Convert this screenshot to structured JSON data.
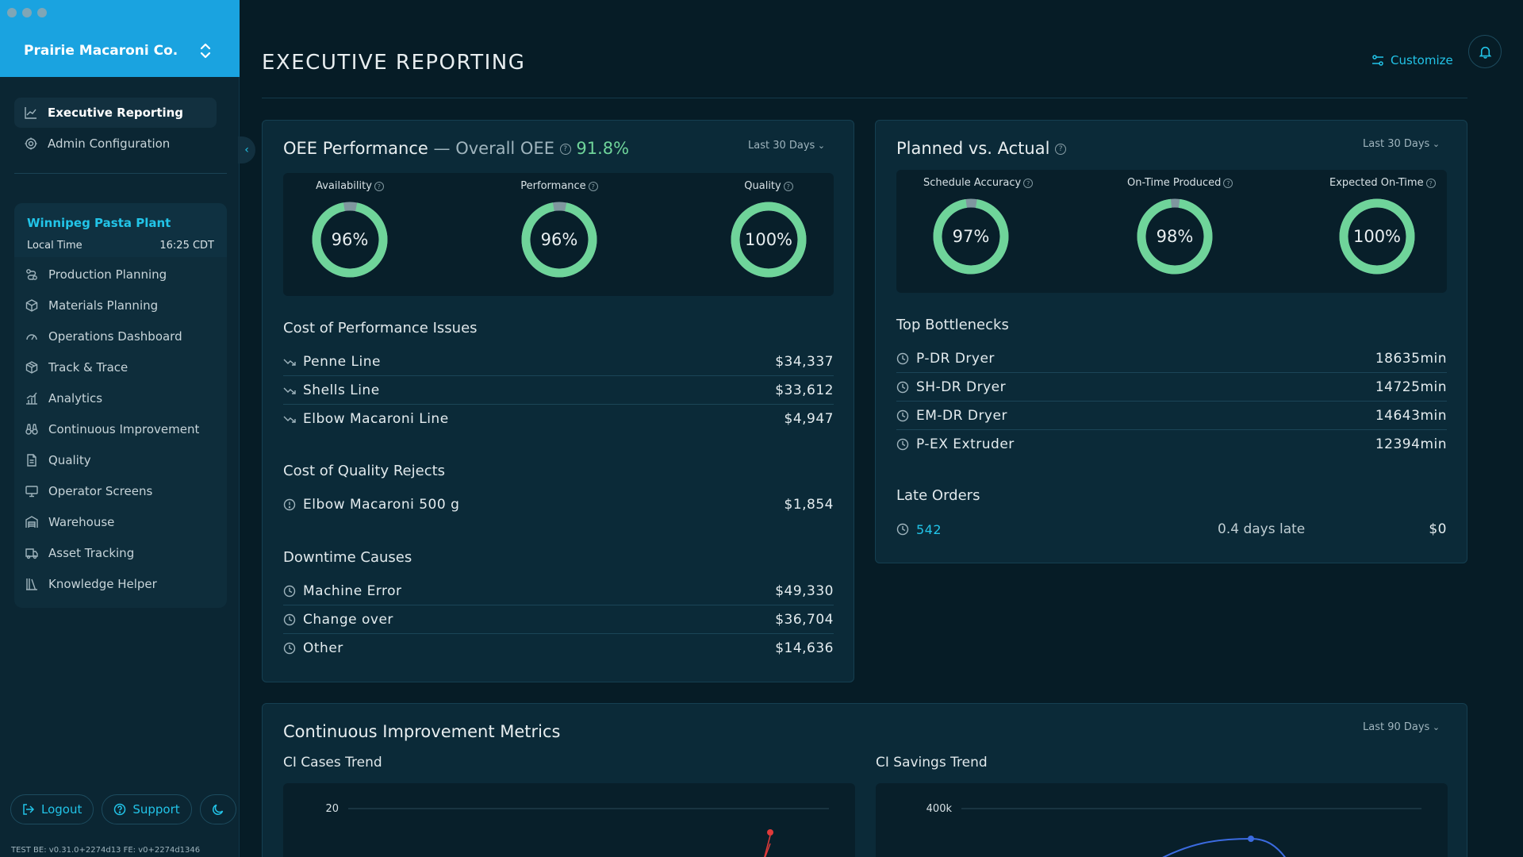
{
  "window": {
    "org_name": "Prairie Macaroni Co."
  },
  "sidebar": {
    "top_items": [
      {
        "label": "Executive Reporting",
        "icon": "chart-line-icon",
        "active": true
      },
      {
        "label": "Admin Configuration",
        "icon": "gear-icon",
        "active": false
      }
    ],
    "plant": {
      "name": "Winnipeg Pasta Plant",
      "local_time_label": "Local Time",
      "local_time_value": "16:25 CDT"
    },
    "plant_items": [
      {
        "label": "Production Planning",
        "icon": "route-icon"
      },
      {
        "label": "Materials Planning",
        "icon": "box-icon"
      },
      {
        "label": "Operations Dashboard",
        "icon": "gauge-icon"
      },
      {
        "label": "Track & Trace",
        "icon": "package-icon"
      },
      {
        "label": "Analytics",
        "icon": "bar-chart-icon"
      },
      {
        "label": "Continuous Improvement",
        "icon": "binoculars-icon"
      },
      {
        "label": "Quality",
        "icon": "document-icon"
      },
      {
        "label": "Operator Screens",
        "icon": "monitor-icon"
      },
      {
        "label": "Warehouse",
        "icon": "warehouse-icon"
      },
      {
        "label": "Asset Tracking",
        "icon": "truck-icon"
      },
      {
        "label": "Knowledge Helper",
        "icon": "books-icon"
      }
    ],
    "logout_label": "Logout",
    "support_label": "Support",
    "version": "TEST   BE: v0.31.0+2274d13   FE: v0+2274d1346"
  },
  "header": {
    "title": "EXECUTIVE REPORTING",
    "customize_label": "Customize"
  },
  "oee": {
    "title": "OEE Performance",
    "dash": "—",
    "overall_label": "Overall OEE",
    "overall_value": "91.8%",
    "range": "Last 30 Days",
    "gauges": [
      {
        "label": "Availability",
        "value": 96,
        "display": "96%"
      },
      {
        "label": "Performance",
        "value": 96,
        "display": "96%"
      },
      {
        "label": "Quality",
        "value": 100,
        "display": "100%"
      }
    ],
    "perf_issues_title": "Cost of Performance Issues",
    "perf_issues": [
      {
        "name": "Penne Line",
        "value": "$34,337"
      },
      {
        "name": "Shells Line",
        "value": "$33,612"
      },
      {
        "name": "Elbow Macaroni Line",
        "value": "$4,947"
      }
    ],
    "quality_rejects_title": "Cost of Quality Rejects",
    "quality_rejects": [
      {
        "name": "Elbow Macaroni 500 g",
        "value": "$1,854"
      }
    ],
    "downtime_title": "Downtime Causes",
    "downtime": [
      {
        "name": "Machine Error",
        "value": "$49,330"
      },
      {
        "name": "Change over",
        "value": "$36,704"
      },
      {
        "name": "Other",
        "value": "$14,636"
      }
    ]
  },
  "planned": {
    "title": "Planned vs. Actual",
    "range": "Last 30 Days",
    "gauges": [
      {
        "label": "Schedule Accuracy",
        "value": 97,
        "display": "97%"
      },
      {
        "label": "On-Time Produced",
        "value": 98,
        "display": "98%"
      },
      {
        "label": "Expected On-Time",
        "value": 100,
        "display": "100%"
      }
    ],
    "bottlenecks_title": "Top Bottlenecks",
    "bottlenecks": [
      {
        "name": "P-DR Dryer",
        "value": "18635min"
      },
      {
        "name": "SH-DR Dryer",
        "value": "14725min"
      },
      {
        "name": "EM-DR Dryer",
        "value": "14643min"
      },
      {
        "name": "P-EX Extruder",
        "value": "12394min"
      }
    ],
    "late_orders_title": "Late Orders",
    "late_orders": [
      {
        "order": "542",
        "late": "0.4 days late",
        "value": "$0"
      }
    ]
  },
  "ci": {
    "title": "Continuous Improvement Metrics",
    "range": "Last 90 Days",
    "cases_title": "CI Cases Trend",
    "savings_title": "CI Savings Trend",
    "cases_tick": "20",
    "savings_tick": "400k"
  },
  "colors": {
    "accent": "#22c4e8",
    "gauge_fill": "#6fd49a",
    "gauge_gap": "#7f979f",
    "ci_cases_line": "#e03a3a",
    "ci_savings_line": "#3b6be0"
  }
}
